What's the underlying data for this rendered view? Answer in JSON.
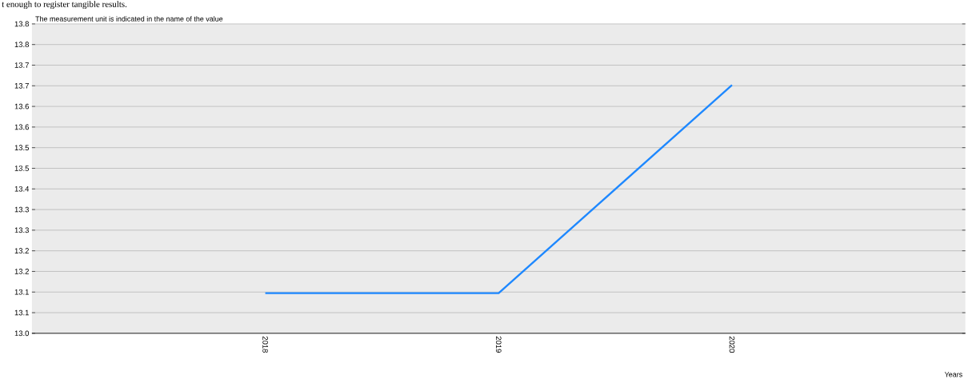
{
  "chart_data": {
    "type": "line",
    "title": "The measurement unit is indicated in the name of the value",
    "xlabel": "Years",
    "annotations": [
      "t enough to register tangible results."
    ],
    "categories": [
      null,
      "2018",
      "2019",
      "2020",
      null
    ],
    "series": [
      {
        "color": "#1e88ff",
        "values": [
          null,
          13.11,
          13.11,
          13.68,
          null
        ]
      }
    ],
    "ylim": [
      13.0,
      13.8475
    ],
    "yticks": [
      {
        "value": 13.0,
        "label": "13.0"
      },
      {
        "value": 13.0565,
        "label": "13.1"
      },
      {
        "value": 13.113,
        "label": "13.1"
      },
      {
        "value": 13.1695,
        "label": "13.2"
      },
      {
        "value": 13.226,
        "label": "13.2"
      },
      {
        "value": 13.2825,
        "label": "13.3"
      },
      {
        "value": 13.339,
        "label": "13.3"
      },
      {
        "value": 13.3955,
        "label": "13.4"
      },
      {
        "value": 13.452,
        "label": "13.5"
      },
      {
        "value": 13.5085,
        "label": "13.5"
      },
      {
        "value": 13.565,
        "label": "13.6"
      },
      {
        "value": 13.6215,
        "label": "13.6"
      },
      {
        "value": 13.678,
        "label": "13.7"
      },
      {
        "value": 13.7345,
        "label": "13.7"
      },
      {
        "value": 13.791,
        "label": "13.8"
      },
      {
        "value": 13.8475,
        "label": "13.8"
      }
    ],
    "grid": "y"
  }
}
